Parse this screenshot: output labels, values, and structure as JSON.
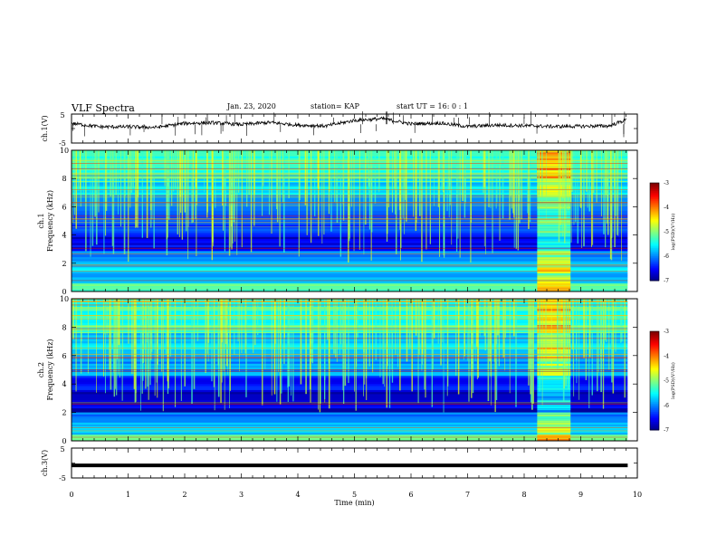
{
  "header": {
    "title": "VLF Spectra",
    "date": "Jan. 23, 2020",
    "station": "station= KAP",
    "start": "start  UT =   16: 0  : 1"
  },
  "chart_data": [
    {
      "type": "line",
      "name": "ch1-waveform",
      "ylabel": "ch.1(V)",
      "ylim": [
        -5,
        5
      ],
      "yticks": [
        "5",
        "-5"
      ],
      "xlim": [
        0,
        10
      ],
      "trace_level_note": "noisy trace oscillating around ~1.5 V",
      "x": [
        0.0,
        0.5,
        1.0,
        1.5,
        2.0,
        2.5,
        3.0,
        3.5,
        4.0,
        4.5,
        5.0,
        5.5,
        6.0,
        6.5,
        7.0,
        7.5,
        8.0,
        8.5,
        9.0,
        9.5,
        9.8
      ],
      "y": [
        1.8,
        0.6,
        0.6,
        0.4,
        1.8,
        2.0,
        1.4,
        2.1,
        1.2,
        0.9,
        2.8,
        3.4,
        1.6,
        1.9,
        0.7,
        1.2,
        1.0,
        0.7,
        0.8,
        0.9,
        3.0
      ]
    },
    {
      "type": "heatmap",
      "name": "ch1-spectrogram",
      "ylabel": "ch.1\nFrequency (kHz)",
      "ylim": [
        0,
        10
      ],
      "yticks": [
        "0",
        "2",
        "4",
        "6",
        "8",
        "10"
      ],
      "xlim": [
        0,
        10
      ],
      "colorbar": {
        "label": "log(PSD)(V²/Hz)",
        "range": [
          -7,
          -3
        ],
        "ticks": [
          "-3",
          "-4",
          "-5",
          "-6",
          "-7"
        ]
      },
      "burst": {
        "x_start": 8.23,
        "x_end": 8.82
      },
      "data_end": 9.83
    },
    {
      "type": "heatmap",
      "name": "ch2-spectrogram",
      "ylabel": "ch.2\nFrequency (kHz)",
      "ylim": [
        0,
        10
      ],
      "yticks": [
        "0",
        "2",
        "4",
        "6",
        "8",
        "10"
      ],
      "xlim": [
        0,
        10
      ],
      "colorbar": {
        "label": "log(PSD)(V²/Hz)",
        "range": [
          -7,
          -3
        ],
        "ticks": [
          "-3",
          "-4",
          "-5",
          "-6",
          "-7"
        ]
      },
      "burst": {
        "x_start": 8.23,
        "x_end": 8.82
      },
      "data_end": 9.83
    },
    {
      "type": "line",
      "name": "ch3-waveform",
      "ylabel": "ch.3(V)",
      "ylim": [
        -5,
        5
      ],
      "yticks": [
        "5",
        "-5"
      ],
      "xlim": [
        0,
        10
      ],
      "x": [
        0,
        9.83
      ],
      "y": [
        -0.8,
        -0.8
      ]
    }
  ],
  "xaxis": {
    "label": "Time (min)",
    "ticks": [
      "0",
      "1",
      "2",
      "3",
      "4",
      "5",
      "6",
      "7",
      "8",
      "9",
      "10"
    ]
  },
  "colors": {
    "line": "#000000",
    "cmap": [
      "#00007f",
      "#0000ff",
      "#0080ff",
      "#00ffff",
      "#80ff80",
      "#ffff00",
      "#ff8000",
      "#ff0000",
      "#7f0000"
    ]
  }
}
